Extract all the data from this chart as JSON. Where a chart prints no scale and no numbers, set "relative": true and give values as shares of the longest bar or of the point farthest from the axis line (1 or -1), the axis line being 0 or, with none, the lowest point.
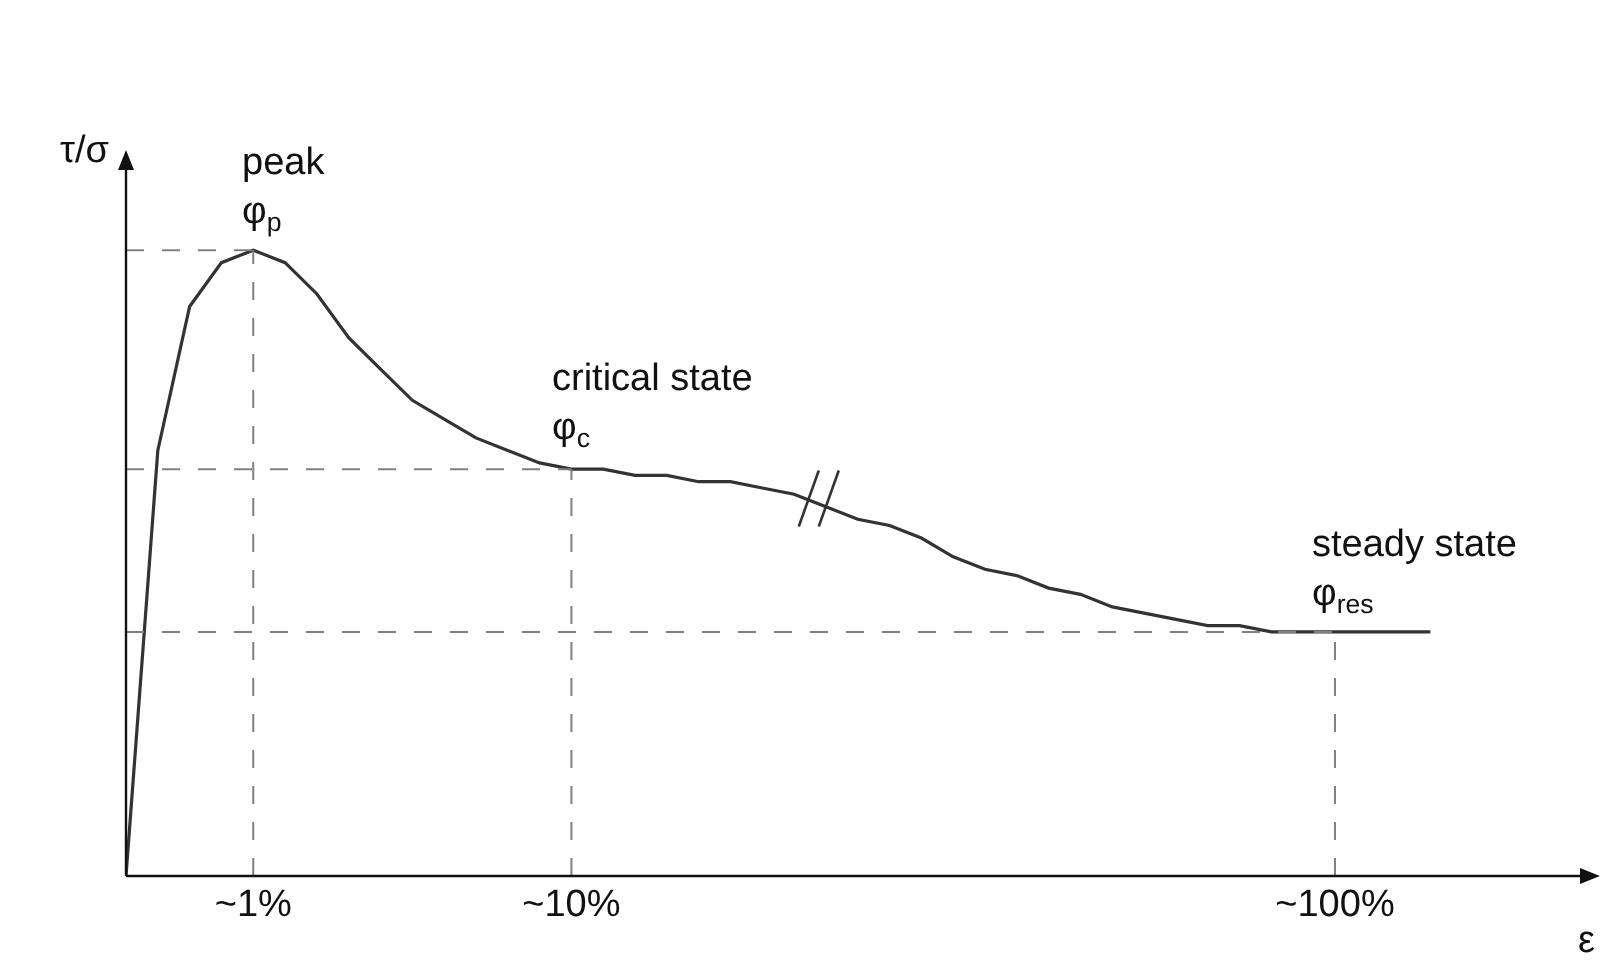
{
  "chart_data": {
    "type": "line",
    "relative": true,
    "xlabel": "ε",
    "ylabel": "τ/σ",
    "categories": [
      null,
      null,
      null,
      null,
      "~1%",
      null,
      null,
      null,
      null,
      null,
      null,
      null,
      null,
      null,
      "~10%",
      null,
      null,
      null,
      null,
      null,
      null,
      null,
      null,
      null,
      null,
      null,
      null,
      null,
      null,
      null,
      null,
      null,
      null,
      null,
      null,
      null,
      null,
      null,
      "~100%",
      null,
      null,
      null
    ],
    "grid": false,
    "marker": "none",
    "line_style": "solid",
    "series": [
      {
        "color": "#333333",
        "values": [
          0,
          0.68,
          0.91,
          0.98,
          1,
          0.98,
          0.93,
          0.86,
          0.81,
          0.76,
          0.73,
          0.7,
          0.68,
          0.66,
          0.65,
          0.65,
          0.64,
          0.64,
          0.63,
          0.63,
          0.62,
          0.61,
          0.59,
          0.57,
          0.56,
          0.54,
          0.51,
          0.49,
          0.48,
          0.46,
          0.45,
          0.43,
          0.42,
          0.41,
          0.4,
          0.4,
          0.39,
          0.39,
          0.39,
          0.39,
          0.39,
          0.39
        ]
      }
    ],
    "ref_lines": [
      {
        "axis": "y",
        "value": 1,
        "color": "#808080",
        "line_style": "dashed"
      },
      {
        "axis": "y",
        "value": 0.65,
        "color": "#808080",
        "line_style": "dashed"
      },
      {
        "axis": "y",
        "value": 0.39,
        "color": "#808080",
        "line_style": "dashed"
      },
      {
        "axis": "x",
        "value": "~1%",
        "color": "#808080",
        "line_style": "dashed"
      },
      {
        "axis": "x",
        "value": "~10%",
        "color": "#808080",
        "line_style": "dashed"
      },
      {
        "axis": "x",
        "value": "~100%",
        "color": "#808080",
        "line_style": "dashed"
      }
    ],
    "annotations": [
      {
        "text": "peak\nφ$_{p}$",
        "x": "~1%",
        "y": 1
      },
      {
        "text": "critical state\nφ$_{c}$",
        "x": "~10%",
        "y": 0.65
      },
      {
        "text": "steady state\nφ$_{res}$",
        "x": "~100%",
        "y": 0.39
      }
    ]
  }
}
